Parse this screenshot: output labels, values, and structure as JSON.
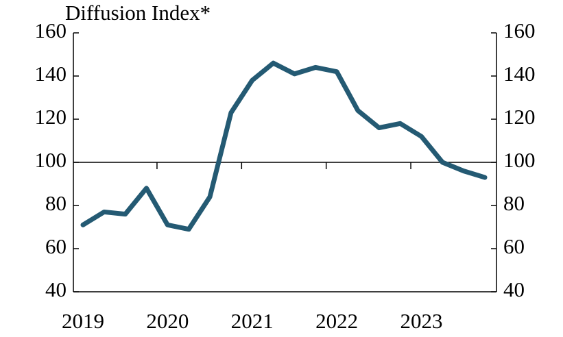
{
  "chart_data": {
    "type": "line",
    "title": "Diffusion Index*",
    "categories": [
      "2019",
      null,
      null,
      null,
      "2020",
      null,
      null,
      null,
      "2021",
      null,
      null,
      null,
      "2022",
      null,
      null,
      null,
      "2023",
      null,
      null,
      null
    ],
    "series": [
      {
        "name": "Diffusion Index",
        "color": "#245a73",
        "values": [
          71,
          77,
          76,
          88,
          71,
          69,
          84,
          123,
          138,
          146,
          141,
          144,
          142,
          124,
          116,
          118,
          112,
          100,
          96,
          93
        ]
      }
    ],
    "ylim": [
      40,
      160
    ],
    "yticks": [
      40,
      60,
      80,
      100,
      120,
      140,
      160
    ],
    "y2lim": [
      40,
      160
    ],
    "y2ticks": [
      40,
      60,
      80,
      100,
      120,
      140,
      160
    ],
    "reference_line": 100
  }
}
